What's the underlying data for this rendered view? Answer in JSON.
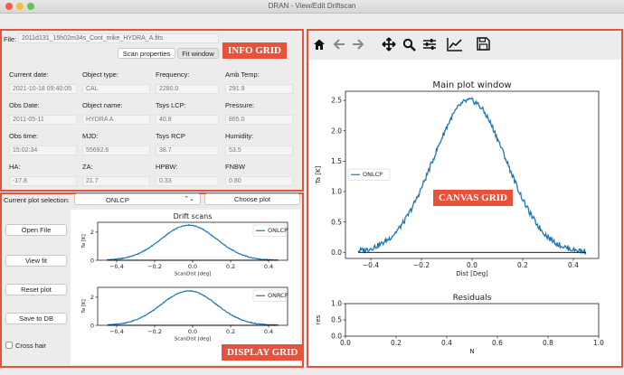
{
  "window": {
    "title": "DRAN - View/Edit Driftscan"
  },
  "info": {
    "file_label": "File:",
    "file_value": "2011d131_15h02m34s_Cont_mike_HYDRA_A.fits",
    "tabs": [
      {
        "label": "Scan properties"
      },
      {
        "label": "Fit window"
      }
    ],
    "fields": [
      {
        "label": "Current date:",
        "value": "2021-10-18 09:40:05"
      },
      {
        "label": "Object type:",
        "value": "CAL"
      },
      {
        "label": "Frequency:",
        "value": "2280.0"
      },
      {
        "label": "Amb Temp:",
        "value": "291.9"
      },
      {
        "label": "Obs Date:",
        "value": "2011-05-11"
      },
      {
        "label": "Object name:",
        "value": "HYDRA A"
      },
      {
        "label": "Tsys LCP:",
        "value": "40.8"
      },
      {
        "label": "Pressure:",
        "value": "865.0"
      },
      {
        "label": "Obs time:",
        "value": "15:02:34"
      },
      {
        "label": "MJD:",
        "value": "55692.6"
      },
      {
        "label": "Tsys RCP",
        "value": "38.7"
      },
      {
        "label": "Humidity:",
        "value": "53.5"
      },
      {
        "label": "HA:",
        "value": "-17.8"
      },
      {
        "label": "ZA:",
        "value": "21.7"
      },
      {
        "label": "HPBW:",
        "value": "0.33"
      },
      {
        "label": "FNBW",
        "value": "0.80"
      }
    ]
  },
  "display": {
    "selection_label": "Current plot selection:",
    "selection_value": "ONLCP",
    "choose_button": "Choose plot",
    "buttons": [
      {
        "label": "Open File"
      },
      {
        "label": "View fit"
      },
      {
        "label": "Reset plot"
      },
      {
        "label": "Save to DB"
      }
    ],
    "crosshair_label": "Cross hair"
  },
  "toolbar": {
    "icons": [
      "home-icon",
      "back-arrow-icon",
      "forward-arrow-icon",
      "pan-icon",
      "zoom-icon",
      "configure-icon",
      "edit-axes-icon",
      "save-icon"
    ]
  },
  "annotations": {
    "info_grid": "INFO GRID",
    "display_grid": "DISPLAY GRID",
    "canvas_grid": "CANVAS GRID"
  },
  "colors": {
    "accent": "#e8523a",
    "line": "#1f77b4"
  },
  "chart_data": [
    {
      "type": "line",
      "title": "Drift scans",
      "xlabel": "ScanDist [deg]",
      "ylabel": "Ta [K]",
      "xlim": [
        -0.5,
        0.5
      ],
      "ylim": [
        0,
        2.7
      ],
      "xticks": [
        -0.4,
        -0.2,
        0.0,
        0.2,
        0.4
      ],
      "yticks": [
        0,
        2
      ],
      "legend": "top-right",
      "series": [
        {
          "name": "ONLCP",
          "peak": 2.5,
          "center": -0.02,
          "sigma": 0.145,
          "x_range": [
            -0.45,
            0.45
          ]
        }
      ]
    },
    {
      "type": "line",
      "title": "",
      "xlabel": "ScanDist [deg]",
      "ylabel": "Ta [K]",
      "xlim": [
        -0.5,
        0.5
      ],
      "ylim": [
        0,
        2.7
      ],
      "xticks": [
        -0.4,
        -0.2,
        0.0,
        0.2,
        0.4
      ],
      "yticks": [
        0,
        2
      ],
      "legend": "top-right",
      "series": [
        {
          "name": "ONRCP",
          "peak": 2.45,
          "center": -0.02,
          "sigma": 0.145,
          "x_range": [
            -0.45,
            0.45
          ]
        }
      ]
    },
    {
      "type": "line",
      "title": "Main plot window",
      "xlabel": "Dist [Deg]",
      "ylabel": "Ta [K]",
      "xlim": [
        -0.5,
        0.5
      ],
      "ylim": [
        -0.1,
        2.65
      ],
      "xticks": [
        -0.4,
        -0.2,
        0.0,
        0.2,
        0.4
      ],
      "yticks": [
        0.0,
        0.5,
        1.0,
        1.5,
        2.0,
        2.5
      ],
      "legend": "center-left",
      "series": [
        {
          "name": "ONLCP",
          "peak": 2.5,
          "center": -0.01,
          "sigma": 0.145,
          "x_range": [
            -0.45,
            0.45
          ]
        }
      ]
    },
    {
      "type": "line",
      "title": "Residuals",
      "xlabel": "N",
      "ylabel": "res",
      "xlim": [
        0.0,
        1.0
      ],
      "ylim": [
        0.0,
        1.0
      ],
      "xticks": [
        0.0,
        0.2,
        0.4,
        0.6,
        0.8,
        1.0
      ],
      "yticks": [
        0.0,
        0.5,
        1.0
      ],
      "series": []
    }
  ]
}
